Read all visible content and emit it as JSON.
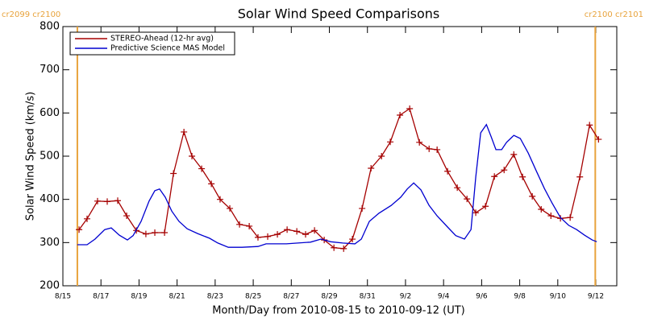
{
  "chart_data": {
    "type": "line",
    "title": "Solar Wind Speed Comparisons",
    "x_label": "Month/Day from 2010-08-15 to 2010-09-12 (UT)",
    "y_label": "Solar Wind Speed (km/s)",
    "xlim": [
      0,
      29.1
    ],
    "xticks": [
      {
        "value": 0,
        "label": "8/15"
      },
      {
        "value": 2,
        "label": "8/17"
      },
      {
        "value": 4,
        "label": "8/19"
      },
      {
        "value": 6,
        "label": "8/21"
      },
      {
        "value": 8,
        "label": "8/23"
      },
      {
        "value": 10,
        "label": "8/25"
      },
      {
        "value": 12,
        "label": "8/27"
      },
      {
        "value": 14,
        "label": "8/29"
      },
      {
        "value": 16,
        "label": "8/31"
      },
      {
        "value": 18,
        "label": "9/2"
      },
      {
        "value": 20,
        "label": "9/4"
      },
      {
        "value": 22,
        "label": "9/6"
      },
      {
        "value": 24,
        "label": "9/8"
      },
      {
        "value": 26,
        "label": "9/10"
      },
      {
        "value": 28,
        "label": "9/12"
      }
    ],
    "ylim": [
      200,
      800
    ],
    "yticks": [
      200,
      300,
      400,
      500,
      600,
      700,
      800
    ],
    "legend": "upper left",
    "annotations": [
      {
        "x": 0.76,
        "label": "cr2099 cr2100",
        "color": "#e8a33c"
      },
      {
        "x": 27.97,
        "label": "cr2100 cr2101",
        "color": "#e8a33c"
      }
    ],
    "series": [
      {
        "name": "STEREO-Ahead (12-hr avg)",
        "color": "#a50000",
        "markers": true,
        "x": [
          0.85,
          1.27,
          1.82,
          2.33,
          2.88,
          3.35,
          3.86,
          4.36,
          4.83,
          5.34,
          5.81,
          6.36,
          6.78,
          7.29,
          7.8,
          8.26,
          8.77,
          9.28,
          9.79,
          10.25,
          10.76,
          11.27,
          11.78,
          12.29,
          12.75,
          13.22,
          13.73,
          14.24,
          14.75,
          15.21,
          15.72,
          16.19,
          16.74,
          17.2,
          17.71,
          18.22,
          18.73,
          19.24,
          19.66,
          20.21,
          20.72,
          21.23,
          21.69,
          22.2,
          22.67,
          23.18,
          23.69,
          24.15,
          24.66,
          25.13,
          25.64,
          26.14,
          26.65,
          27.16,
          27.67,
          28.14
        ],
        "values": [
          330,
          355,
          396,
          395,
          397,
          362,
          328,
          320,
          323,
          323,
          460,
          556,
          500,
          471,
          436,
          400,
          379,
          342,
          338,
          312,
          314,
          319,
          330,
          326,
          319,
          328,
          306,
          288,
          286,
          308,
          379,
          472,
          500,
          533,
          595,
          610,
          532,
          517,
          515,
          465,
          427,
          401,
          369,
          384,
          453,
          468,
          504,
          452,
          407,
          377,
          362,
          356,
          358,
          452,
          572,
          539
        ]
      },
      {
        "name": "Predictive Science MAS Model",
        "color": "#0000d0",
        "markers": false,
        "x": [
          0.76,
          1.27,
          1.69,
          2.2,
          2.54,
          2.97,
          3.39,
          3.69,
          4.11,
          4.53,
          4.83,
          5.08,
          5.38,
          5.72,
          6.1,
          6.53,
          7.08,
          7.71,
          8.14,
          8.69,
          9.41,
          10.25,
          10.68,
          11.74,
          13.01,
          13.56,
          14.07,
          14.7,
          15.34,
          15.68,
          16.1,
          16.61,
          17.25,
          17.75,
          18.09,
          18.43,
          18.81,
          19.24,
          19.66,
          20.21,
          20.64,
          21.1,
          21.44,
          21.69,
          21.95,
          22.25,
          22.5,
          22.75,
          23.05,
          23.31,
          23.69,
          24.03,
          24.45,
          24.87,
          25.3,
          25.72,
          26.14,
          26.57,
          26.99,
          27.41,
          27.81,
          28.05
        ],
        "values": [
          295,
          295,
          308,
          330,
          334,
          317,
          306,
          316,
          349,
          396,
          420,
          424,
          405,
          373,
          349,
          332,
          321,
          310,
          299,
          289,
          289,
          291,
          297,
          297,
          301,
          308,
          302,
          299,
          297,
          308,
          349,
          368,
          386,
          405,
          424,
          438,
          422,
          386,
          362,
          336,
          316,
          308,
          330,
          452,
          554,
          573,
          545,
          515,
          515,
          532,
          548,
          541,
          507,
          466,
          425,
          390,
          358,
          340,
          330,
          317,
          306,
          302
        ]
      }
    ]
  }
}
